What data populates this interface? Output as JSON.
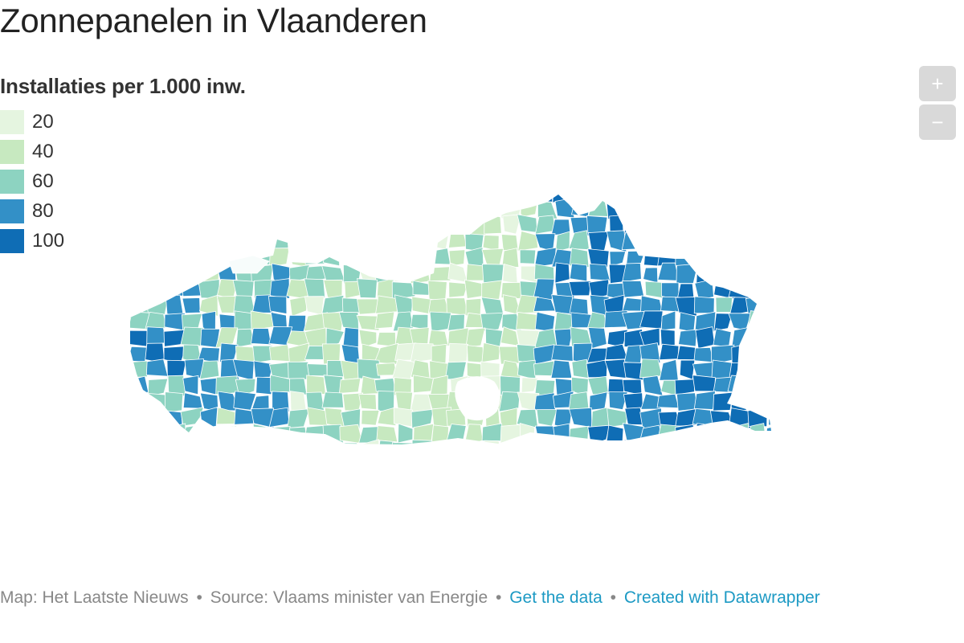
{
  "title": "Zonnepanelen in Vlaanderen",
  "legend": {
    "title": "Installaties per 1.000 inw.",
    "items": [
      {
        "label": "20",
        "color": "#e5f5e0"
      },
      {
        "label": "40",
        "color": "#c7e9c0"
      },
      {
        "label": "60",
        "color": "#8dd3c1"
      },
      {
        "label": "80",
        "color": "#3390c7"
      },
      {
        "label": "100",
        "color": "#0f6db5"
      }
    ]
  },
  "zoom": {
    "in_label": "+",
    "out_label": "−"
  },
  "footer": {
    "credit": "Map: Het Laatste Nieuws",
    "source": "Source: Vlaams minister van Energie",
    "separator": "•",
    "get_data": "Get the data",
    "created_with": "Created with Datawrapper"
  }
}
